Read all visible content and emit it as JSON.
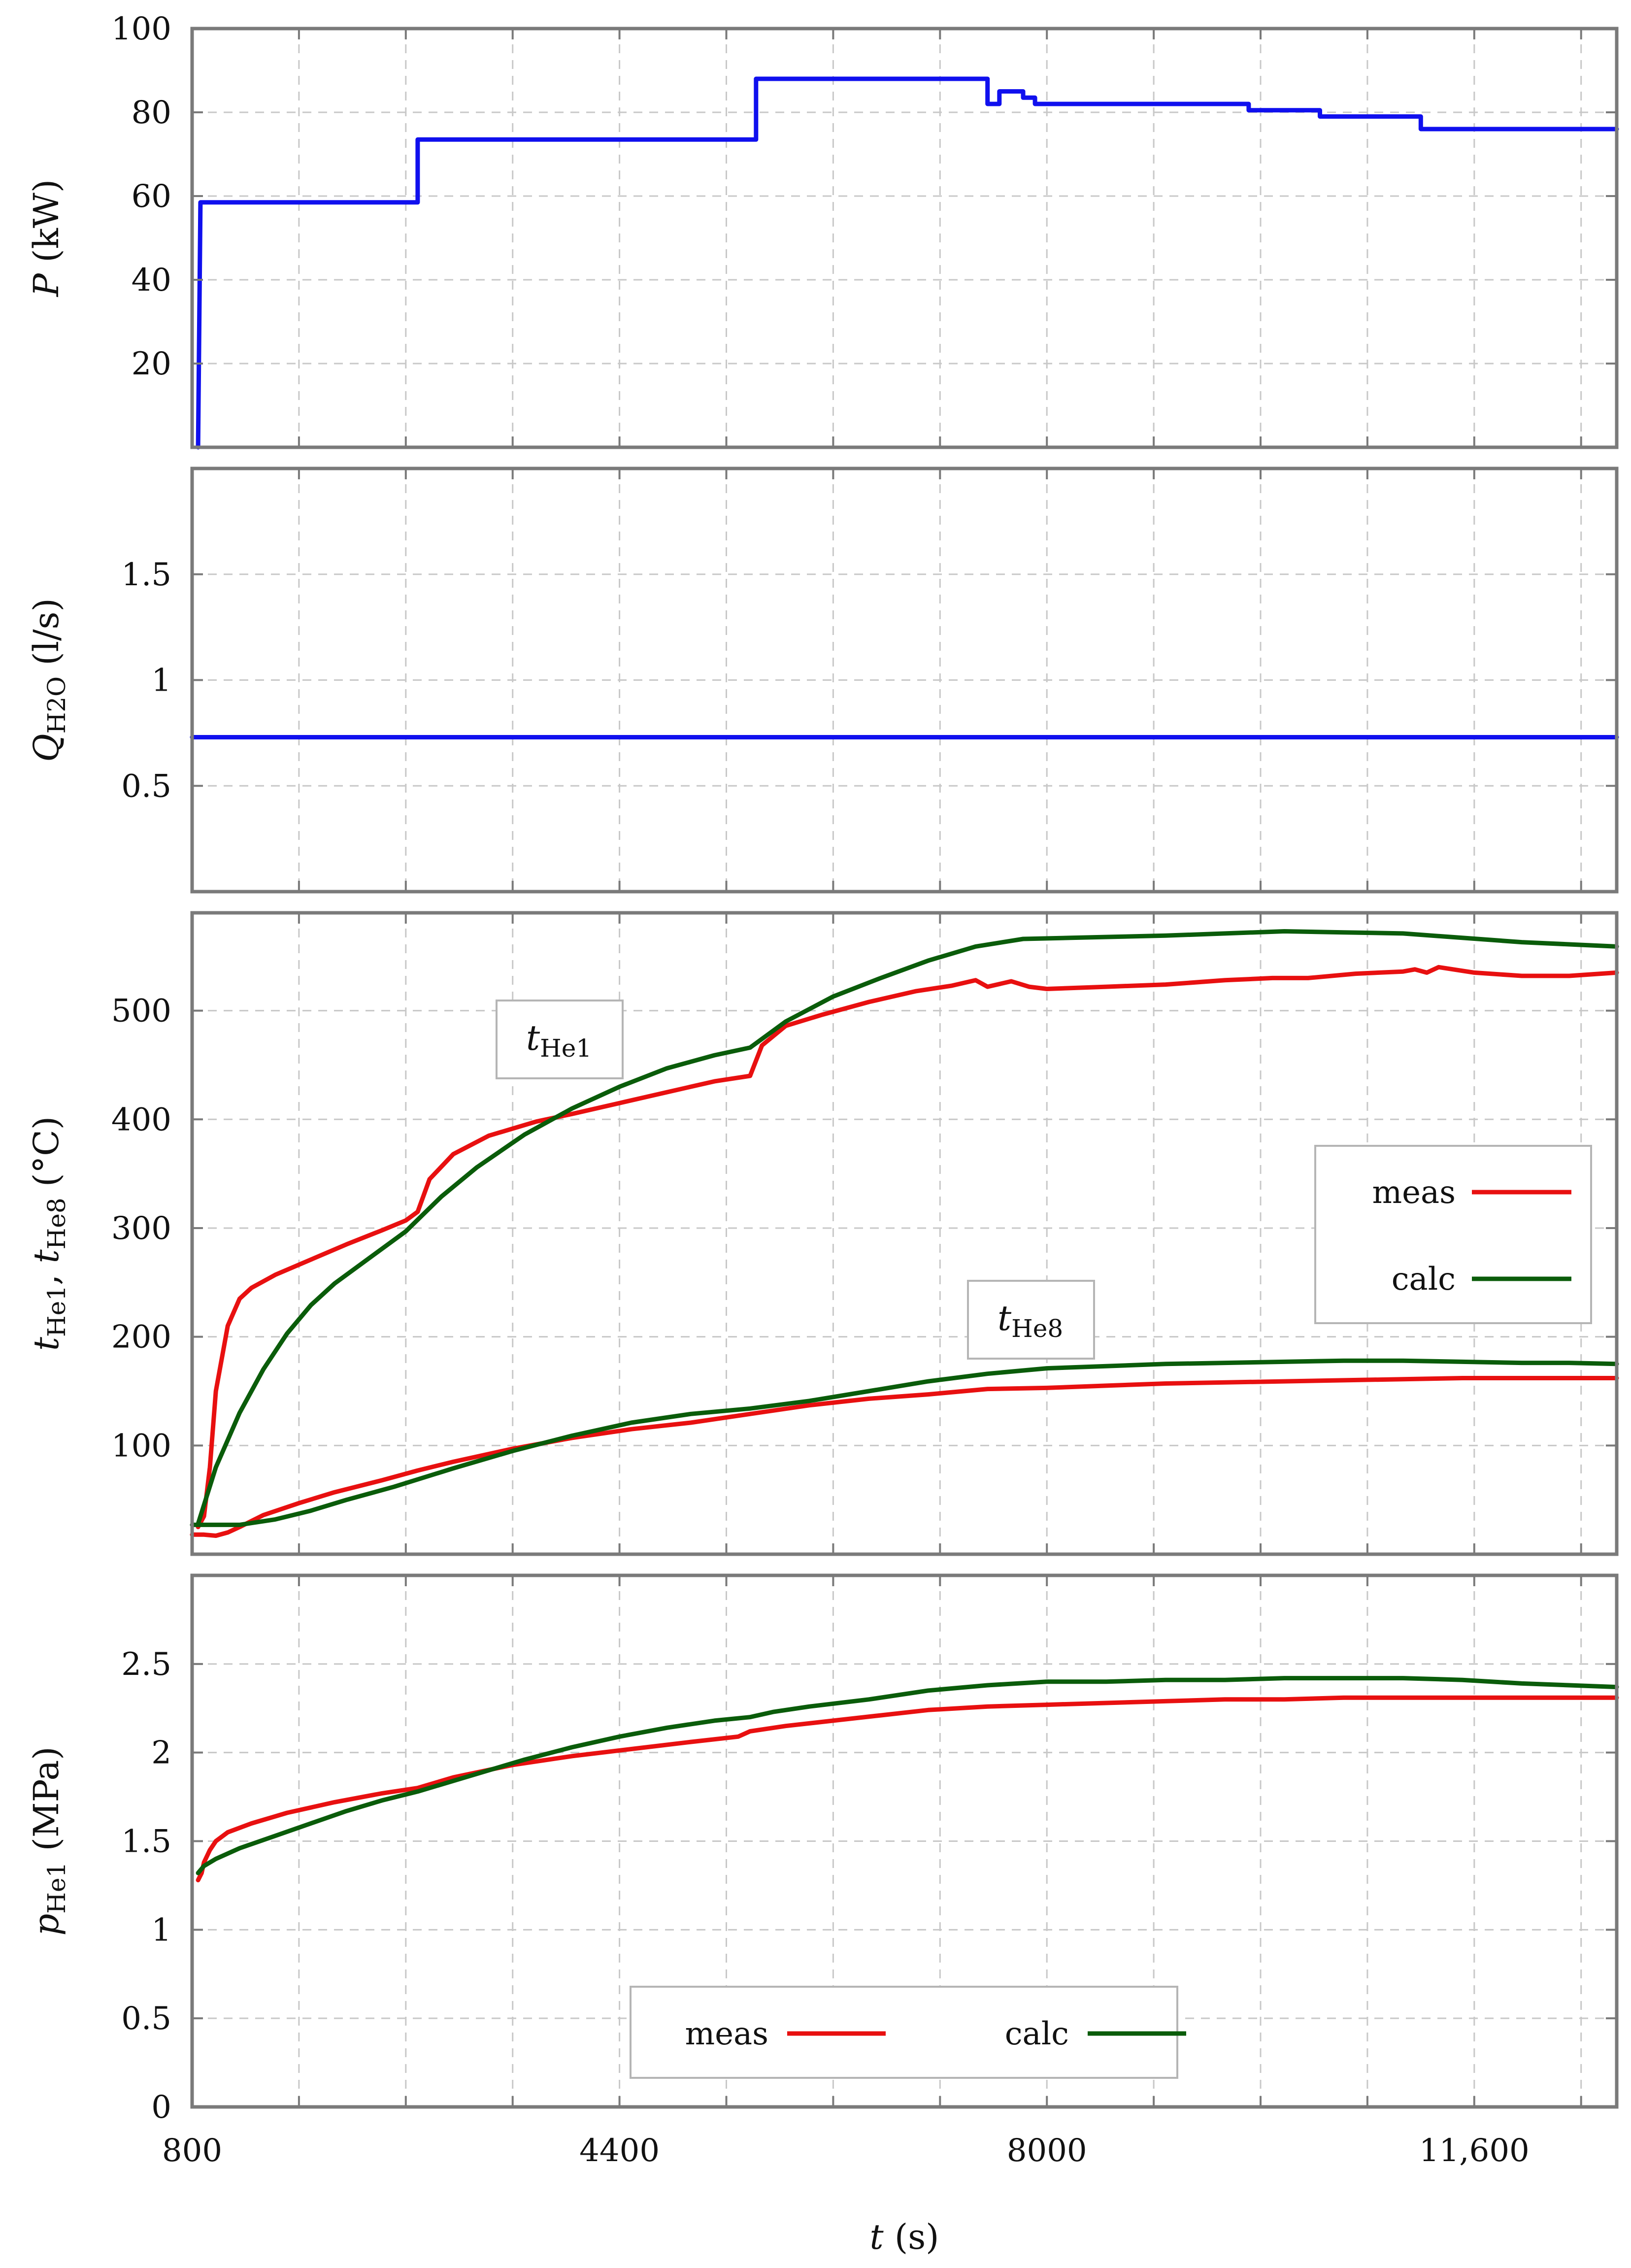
{
  "chart_data": [
    {
      "type": "line",
      "panel": "power",
      "ylabel": "P (kW)",
      "ylabel_parts": {
        "var": "P",
        "sub": "",
        "unit": " (kW)"
      },
      "xlim": [
        800,
        12800
      ],
      "ylim": [
        0,
        100
      ],
      "yticks": [
        20,
        40,
        60,
        80,
        100
      ],
      "ytick_labels": [
        "20",
        "40",
        "60",
        "80",
        "100"
      ],
      "series": [
        {
          "name": "P",
          "color": "#1010ee",
          "step": true,
          "x": [
            850,
            870,
            2700,
            2700,
            5550,
            5550,
            7500,
            7500,
            7600,
            7600,
            7800,
            7800,
            7900,
            7900,
            9700,
            9700,
            10300,
            10300,
            11150,
            11150,
            12800
          ],
          "y": [
            0,
            58.5,
            58.5,
            73.5,
            73.5,
            88,
            88,
            82,
            82,
            85,
            85,
            83.5,
            83.5,
            82,
            82,
            80.5,
            80.5,
            79,
            79,
            76,
            76
          ]
        }
      ]
    },
    {
      "type": "line",
      "panel": "flow",
      "ylabel": "QH2O (l/s)",
      "ylabel_parts": {
        "var": "Q",
        "sub": "H2O",
        "unit": " (l/s)"
      },
      "xlim": [
        800,
        12800
      ],
      "ylim": [
        0,
        2
      ],
      "yticks": [
        0.5,
        1,
        1.5
      ],
      "ytick_labels": [
        "0.5",
        "1",
        "1.5"
      ],
      "series": [
        {
          "name": "QH2O",
          "color": "#1010ee",
          "x": [
            800,
            12800
          ],
          "y": [
            0.73,
            0.73
          ]
        }
      ]
    },
    {
      "type": "line",
      "panel": "temperature",
      "ylabel": "tHe1, tHe8 (°C)",
      "ylabel_parts": {
        "var1": "t",
        "sub1": "He1",
        "sep": ", ",
        "var2": "t",
        "sub2": "He8",
        "unit": " (°C)"
      },
      "xlim": [
        800,
        12800
      ],
      "ylim": [
        0,
        590
      ],
      "yticks": [
        100,
        200,
        300,
        400,
        500
      ],
      "ytick_labels": [
        "100",
        "200",
        "300",
        "400",
        "500"
      ],
      "annotations": [
        {
          "var": "t",
          "sub": "He1",
          "x": 3600,
          "y": 470
        },
        {
          "var": "t",
          "sub": "He8",
          "x": 7300,
          "y": 210
        }
      ],
      "legend": {
        "position": "right",
        "entries": [
          {
            "label": "meas",
            "color": "#e81010"
          },
          {
            "label": "calc",
            "color": "#0a5c0a"
          }
        ]
      },
      "series": [
        {
          "name": "tHe1 meas",
          "color": "#e81010",
          "x": [
            850,
            900,
            950,
            1000,
            1100,
            1200,
            1300,
            1500,
            1800,
            2100,
            2400,
            2600,
            2700,
            2800,
            3000,
            3300,
            3700,
            4000,
            4400,
            4800,
            5200,
            5500,
            5600,
            5800,
            6100,
            6500,
            6900,
            7200,
            7400,
            7500,
            7700,
            7850,
            8000,
            8500,
            9000,
            9500,
            9900,
            10200,
            10600,
            11000,
            11100,
            11200,
            11300,
            11600,
            12000,
            12400,
            12800
          ],
          "y": [
            25,
            35,
            80,
            150,
            210,
            235,
            245,
            257,
            271,
            285,
            298,
            307,
            315,
            345,
            368,
            385,
            398,
            405,
            415,
            425,
            435,
            440,
            468,
            486,
            496,
            508,
            518,
            523,
            528,
            522,
            527,
            522,
            520,
            522,
            524,
            528,
            530,
            530,
            534,
            536,
            538,
            535,
            540,
            535,
            532,
            532,
            535
          ]
        },
        {
          "name": "tHe1 calc",
          "color": "#0a5c0a",
          "x": [
            850,
            1000,
            1200,
            1400,
            1600,
            1800,
            2000,
            2300,
            2600,
            2900,
            3200,
            3600,
            4000,
            4400,
            4800,
            5200,
            5500,
            5800,
            6200,
            6600,
            7000,
            7400,
            7800,
            8200,
            8600,
            9000,
            9500,
            10000,
            10500,
            11000,
            11500,
            12000,
            12400,
            12800
          ],
          "y": [
            28,
            80,
            130,
            170,
            203,
            229,
            249,
            273,
            297,
            329,
            356,
            386,
            410,
            430,
            447,
            459,
            466,
            490,
            513,
            530,
            546,
            559,
            566,
            567,
            568,
            569,
            571,
            573,
            572,
            571,
            567,
            563,
            561,
            559
          ]
        },
        {
          "name": "tHe8 meas",
          "color": "#e81010",
          "x": [
            800,
            900,
            1000,
            1100,
            1200,
            1400,
            1700,
            2000,
            2400,
            2700,
            3000,
            3500,
            4000,
            4500,
            5000,
            5500,
            6000,
            6500,
            7000,
            7500,
            8000,
            8500,
            9000,
            9500,
            10000,
            10500,
            11000,
            11500,
            12000,
            12500,
            12800
          ],
          "y": [
            18,
            18,
            17,
            20,
            25,
            36,
            47,
            57,
            68,
            77,
            85,
            97,
            107,
            115,
            121,
            129,
            137,
            143,
            147,
            152,
            153,
            155,
            157,
            158,
            159,
            160,
            161,
            162,
            162,
            162,
            162
          ]
        },
        {
          "name": "tHe8 calc",
          "color": "#0a5c0a",
          "x": [
            800,
            1000,
            1200,
            1500,
            1800,
            2100,
            2500,
            3000,
            3500,
            4000,
            4500,
            5000,
            5500,
            6000,
            6500,
            7000,
            7500,
            8000,
            8500,
            9000,
            9500,
            10000,
            10500,
            11000,
            11500,
            12000,
            12400,
            12800
          ],
          "y": [
            27,
            27,
            27,
            32,
            40,
            50,
            62,
            79,
            95,
            109,
            121,
            129,
            134,
            141,
            150,
            159,
            166,
            171,
            173,
            175,
            176,
            177,
            178,
            178,
            177,
            176,
            176,
            175
          ]
        }
      ]
    },
    {
      "type": "line",
      "panel": "pressure",
      "ylabel": "pHe1 (MPa)",
      "ylabel_parts": {
        "var": "p",
        "sub": "He1",
        "unit": " (MPa)"
      },
      "xlabel": "t (s)",
      "xlabel_parts": {
        "var": "t",
        "unit": " (s)"
      },
      "xlim": [
        800,
        12800
      ],
      "ylim": [
        0,
        3.0
      ],
      "yticks": [
        0,
        0.5,
        1,
        1.5,
        2,
        2.5
      ],
      "ytick_labels": [
        "0",
        "0.5",
        "1",
        "1.5",
        "2",
        "2.5"
      ],
      "xticks": [
        800,
        4400,
        8000,
        11600
      ],
      "xtick_labels": [
        "800",
        "4400",
        "8000",
        "11,600"
      ],
      "xminor": [
        1700,
        2600,
        3500,
        5300,
        6200,
        7100,
        8900,
        9800,
        10700,
        12500
      ],
      "legend": {
        "position": "bottom-center",
        "entries": [
          {
            "label": "meas",
            "color": "#e81010"
          },
          {
            "label": "calc",
            "color": "#0a5c0a"
          }
        ]
      },
      "series": [
        {
          "name": "pHe1 meas",
          "color": "#e81010",
          "x": [
            850,
            880,
            900,
            950,
            1000,
            1100,
            1300,
            1600,
            2000,
            2400,
            2700,
            3000,
            3500,
            4000,
            4500,
            5000,
            5400,
            5500,
            5800,
            6200,
            6600,
            7000,
            7500,
            8000,
            8500,
            9000,
            9500,
            10000,
            10500,
            11000,
            11500,
            12000,
            12500,
            12800
          ],
          "y": [
            1.28,
            1.32,
            1.38,
            1.45,
            1.5,
            1.55,
            1.6,
            1.66,
            1.72,
            1.77,
            1.8,
            1.86,
            1.93,
            1.98,
            2.02,
            2.06,
            2.09,
            2.12,
            2.15,
            2.18,
            2.21,
            2.24,
            2.26,
            2.27,
            2.28,
            2.29,
            2.3,
            2.3,
            2.31,
            2.31,
            2.31,
            2.31,
            2.31,
            2.31
          ]
        },
        {
          "name": "pHe1 calc",
          "color": "#0a5c0a",
          "x": [
            850,
            900,
            1000,
            1200,
            1500,
            1800,
            2100,
            2400,
            2700,
            3000,
            3300,
            3600,
            4000,
            4400,
            4800,
            5200,
            5500,
            5700,
            6000,
            6500,
            7000,
            7500,
            8000,
            8500,
            9000,
            9500,
            10000,
            10500,
            11000,
            11500,
            12000,
            12400,
            12800
          ],
          "y": [
            1.32,
            1.36,
            1.4,
            1.46,
            1.53,
            1.6,
            1.67,
            1.73,
            1.78,
            1.84,
            1.9,
            1.96,
            2.03,
            2.09,
            2.14,
            2.18,
            2.2,
            2.23,
            2.26,
            2.3,
            2.35,
            2.38,
            2.4,
            2.4,
            2.41,
            2.41,
            2.42,
            2.42,
            2.42,
            2.41,
            2.39,
            2.38,
            2.37
          ]
        }
      ]
    }
  ]
}
